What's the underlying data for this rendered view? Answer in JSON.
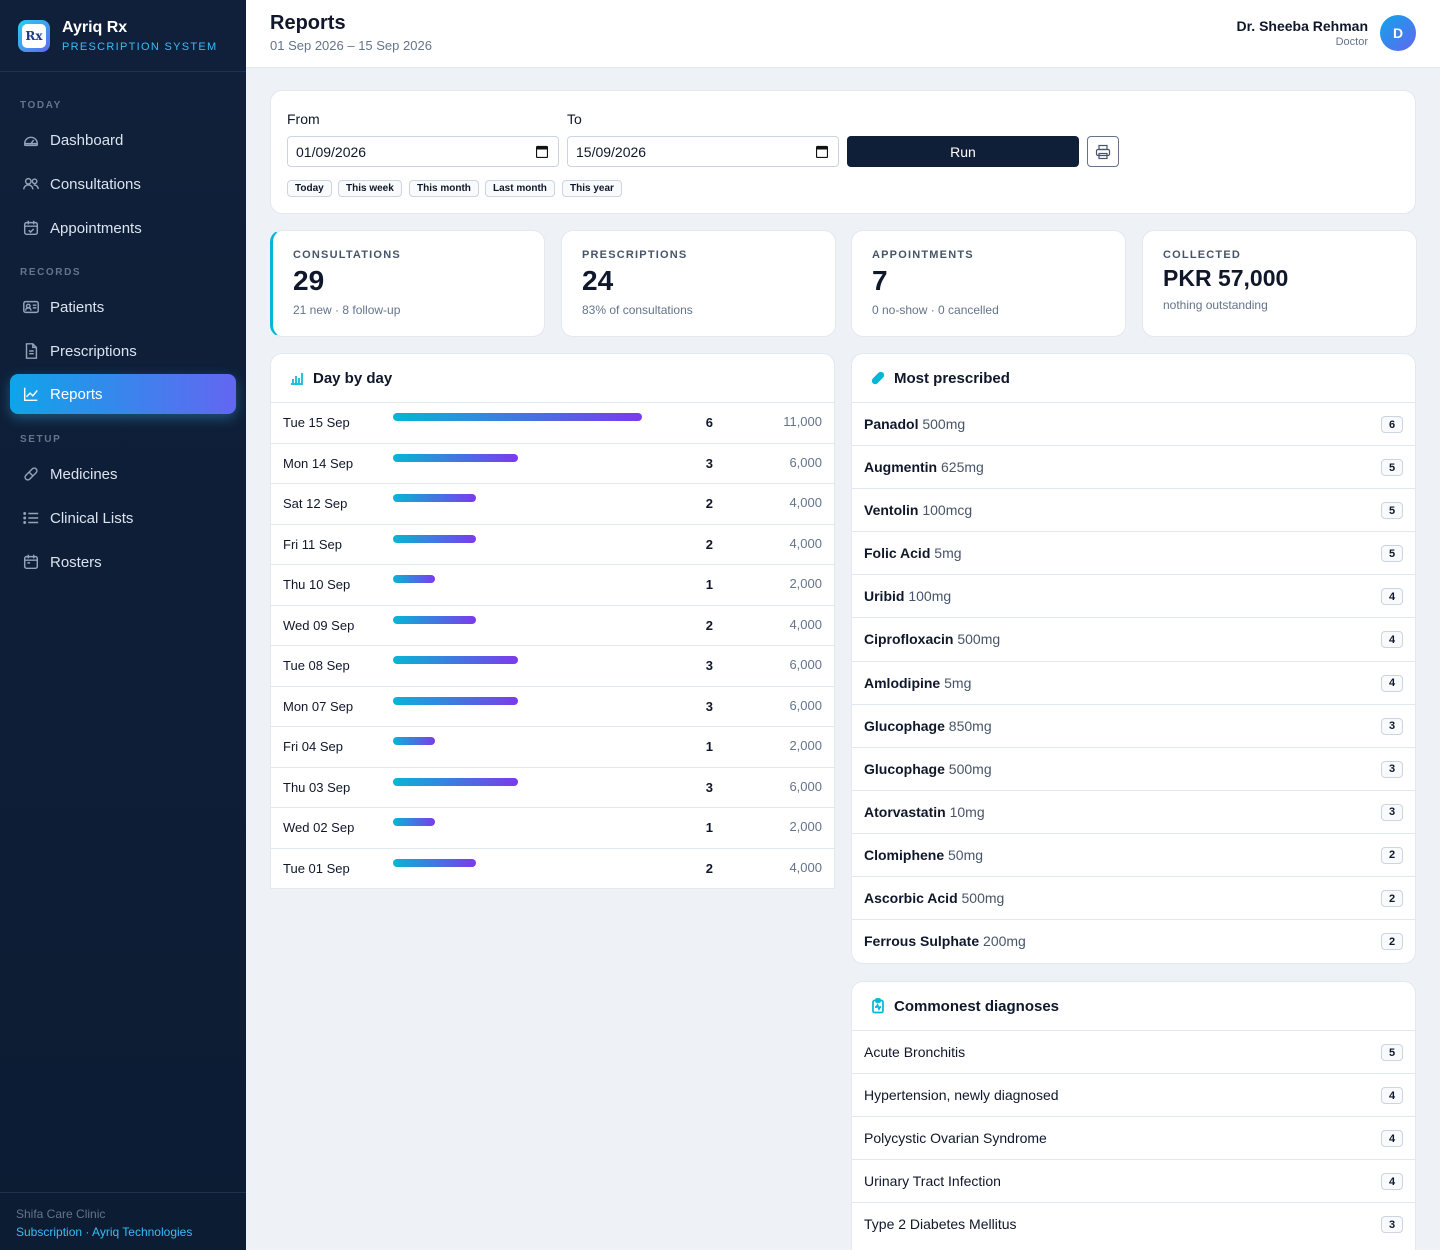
{
  "brand": {
    "name": "Ayriq Rx",
    "subtitle": "PRESCRIPTION SYSTEM",
    "logo_text": "Rx"
  },
  "sidebar": {
    "sections": [
      "TODAY",
      "RECORDS",
      "SETUP"
    ],
    "items": [
      {
        "label": "Dashboard",
        "icon": "dashboard-icon"
      },
      {
        "label": "Consultations",
        "icon": "users-icon"
      },
      {
        "label": "Appointments",
        "icon": "calendar-check-icon"
      },
      {
        "label": "Patients",
        "icon": "id-card-icon"
      },
      {
        "label": "Prescriptions",
        "icon": "document-icon"
      },
      {
        "label": "Reports",
        "icon": "chart-line-icon",
        "active": true
      },
      {
        "label": "Medicines",
        "icon": "pill-icon"
      },
      {
        "label": "Clinical Lists",
        "icon": "list-icon"
      },
      {
        "label": "Rosters",
        "icon": "calendar-icon"
      }
    ],
    "footer": {
      "clinic": "Shifa Care Clinic",
      "links": "Subscription · Ayriq Technologies"
    }
  },
  "header": {
    "title": "Reports",
    "range": "01 Sep 2026 – 15 Sep 2026",
    "user_name": "Dr. Sheeba Rehman",
    "user_role": "Doctor",
    "avatar_initial": "D"
  },
  "filter": {
    "from_label": "From",
    "from_value": "01/09/2026",
    "to_label": "To",
    "to_value": "15/09/2026",
    "run_label": "Run",
    "chips": [
      "Today",
      "This week",
      "This month",
      "Last month",
      "This year"
    ]
  },
  "stats": [
    {
      "label": "CONSULTATIONS",
      "value": "29",
      "sub": "21 new · 8 follow-up"
    },
    {
      "label": "PRESCRIPTIONS",
      "value": "24",
      "sub": "83% of consultations"
    },
    {
      "label": "APPOINTMENTS",
      "value": "7",
      "sub": "0 no-show · 0 cancelled"
    },
    {
      "label": "COLLECTED",
      "value": "PKR 57,000",
      "sub": "nothing outstanding"
    }
  ],
  "daily": {
    "title": "Day by day",
    "rows": [
      {
        "date": "Tue 15 Sep",
        "count": 6,
        "amount": "11,000"
      },
      {
        "date": "Mon 14 Sep",
        "count": 3,
        "amount": "6,000"
      },
      {
        "date": "Sat 12 Sep",
        "count": 2,
        "amount": "4,000"
      },
      {
        "date": "Fri 11 Sep",
        "count": 2,
        "amount": "4,000"
      },
      {
        "date": "Thu 10 Sep",
        "count": 1,
        "amount": "2,000"
      },
      {
        "date": "Wed 09 Sep",
        "count": 2,
        "amount": "4,000"
      },
      {
        "date": "Tue 08 Sep",
        "count": 3,
        "amount": "6,000"
      },
      {
        "date": "Mon 07 Sep",
        "count": 3,
        "amount": "6,000"
      },
      {
        "date": "Fri 04 Sep",
        "count": 1,
        "amount": "2,000"
      },
      {
        "date": "Thu 03 Sep",
        "count": 3,
        "amount": "6,000"
      },
      {
        "date": "Wed 02 Sep",
        "count": 1,
        "amount": "2,000"
      },
      {
        "date": "Tue 01 Sep",
        "count": 2,
        "amount": "4,000"
      }
    ]
  },
  "medicines": {
    "title": "Most prescribed",
    "rows": [
      {
        "name": "Panadol",
        "dose": "500mg",
        "count": 6
      },
      {
        "name": "Augmentin",
        "dose": "625mg",
        "count": 5
      },
      {
        "name": "Ventolin",
        "dose": "100mcg",
        "count": 5
      },
      {
        "name": "Folic Acid",
        "dose": "5mg",
        "count": 5
      },
      {
        "name": "Uribid",
        "dose": "100mg",
        "count": 4
      },
      {
        "name": "Ciprofloxacin",
        "dose": "500mg",
        "count": 4
      },
      {
        "name": "Amlodipine",
        "dose": "5mg",
        "count": 4
      },
      {
        "name": "Glucophage",
        "dose": "850mg",
        "count": 3
      },
      {
        "name": "Glucophage",
        "dose": "500mg",
        "count": 3
      },
      {
        "name": "Atorvastatin",
        "dose": "10mg",
        "count": 3
      },
      {
        "name": "Clomiphene",
        "dose": "50mg",
        "count": 2
      },
      {
        "name": "Ascorbic Acid",
        "dose": "500mg",
        "count": 2
      },
      {
        "name": "Ferrous Sulphate",
        "dose": "200mg",
        "count": 2
      }
    ]
  },
  "diagnoses": {
    "title": "Commonest diagnoses",
    "rows": [
      {
        "name": "Acute Bronchitis",
        "count": 5
      },
      {
        "name": "Hypertension, newly diagnosed",
        "count": 4
      },
      {
        "name": "Polycystic Ovarian Syndrome",
        "count": 4
      },
      {
        "name": "Urinary Tract Infection",
        "count": 4
      },
      {
        "name": "Type 2 Diabetes Mellitus",
        "count": 3
      }
    ]
  }
}
